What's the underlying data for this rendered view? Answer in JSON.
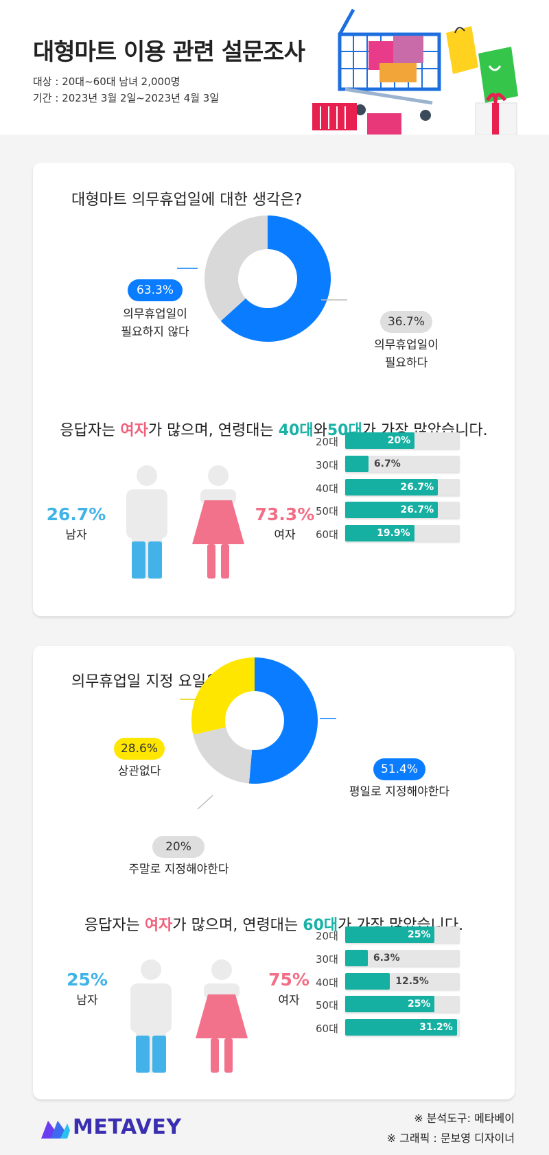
{
  "header": {
    "title": "대형마트 이용 관련 설문조사",
    "target": "대상 : 20대~60대 남녀 2,000명",
    "period": "기간 : 2023년 3월 2일~2023년 4월 3일"
  },
  "colors": {
    "blue": "#0a7cff",
    "gray": "#d9d9d9",
    "yellow": "#ffe600",
    "teal": "#16b0a2",
    "pink": "#f26d86",
    "sky": "#3fb3e8"
  },
  "card1": {
    "question": "대형마트 의무휴업일에 대한 생각은?",
    "summary": {
      "before": "응답자는 ",
      "gender": "여자",
      "mid": "가 많으며, 연령대는 ",
      "age1": "40대",
      "and": "와",
      "age2": "50대",
      "after": "가 가장 많았습니다."
    },
    "male": {
      "pct": "26.7%",
      "label": "남자"
    },
    "female": {
      "pct": "73.3%",
      "label": "여자"
    }
  },
  "card2": {
    "question": "의무휴업일 지정 요일은?",
    "summary": {
      "before": "응답자는 ",
      "gender": "여자",
      "mid": "가 많으며, 연령대는 ",
      "age1": "60대",
      "after": "가 가장 많았습니다."
    },
    "male": {
      "pct": "25%",
      "label": "남자"
    },
    "female": {
      "pct": "75%",
      "label": "여자"
    }
  },
  "chart_data": [
    {
      "type": "pie",
      "title": "대형마트 의무휴업일에 대한 생각은?",
      "categories": [
        "의무휴업일이 필요하지 않다",
        "의무휴업일이 필요하다"
      ],
      "values": [
        63.3,
        36.7
      ],
      "value_labels": [
        "63.3%",
        "36.7%"
      ],
      "colors": [
        "#0a7cff",
        "#d9d9d9"
      ],
      "donut": true
    },
    {
      "type": "bar",
      "orientation": "horizontal",
      "categories": [
        "20대",
        "30대",
        "40대",
        "50대",
        "60대"
      ],
      "values": [
        20,
        6.7,
        26.7,
        26.7,
        19.9
      ],
      "value_labels": [
        "20%",
        "6.7%",
        "26.7%",
        "26.7%",
        "19.9%"
      ],
      "xlim": [
        0,
        33
      ]
    },
    {
      "type": "pie",
      "title": "의무휴업일 지정 요일은?",
      "categories": [
        "평일로 지정해야한다",
        "주말로 지정해야한다",
        "상관없다"
      ],
      "values": [
        51.4,
        20,
        28.6
      ],
      "value_labels": [
        "51.4%",
        "20%",
        "28.6%"
      ],
      "colors": [
        "#0a7cff",
        "#d9d9d9",
        "#ffe600"
      ],
      "donut": true
    },
    {
      "type": "bar",
      "orientation": "horizontal",
      "categories": [
        "20대",
        "30대",
        "40대",
        "50대",
        "60대"
      ],
      "values": [
        25,
        6.3,
        12.5,
        25,
        31.2
      ],
      "value_labels": [
        "25%",
        "6.3%",
        "12.5%",
        "25%",
        "31.2%"
      ],
      "xlim": [
        0,
        32
      ]
    }
  ],
  "footer": {
    "brand": "METAVEY",
    "tool": "※ 분석도구: 메타베이",
    "graphic": "※ 그래픽 : 문보영 디자이너"
  }
}
